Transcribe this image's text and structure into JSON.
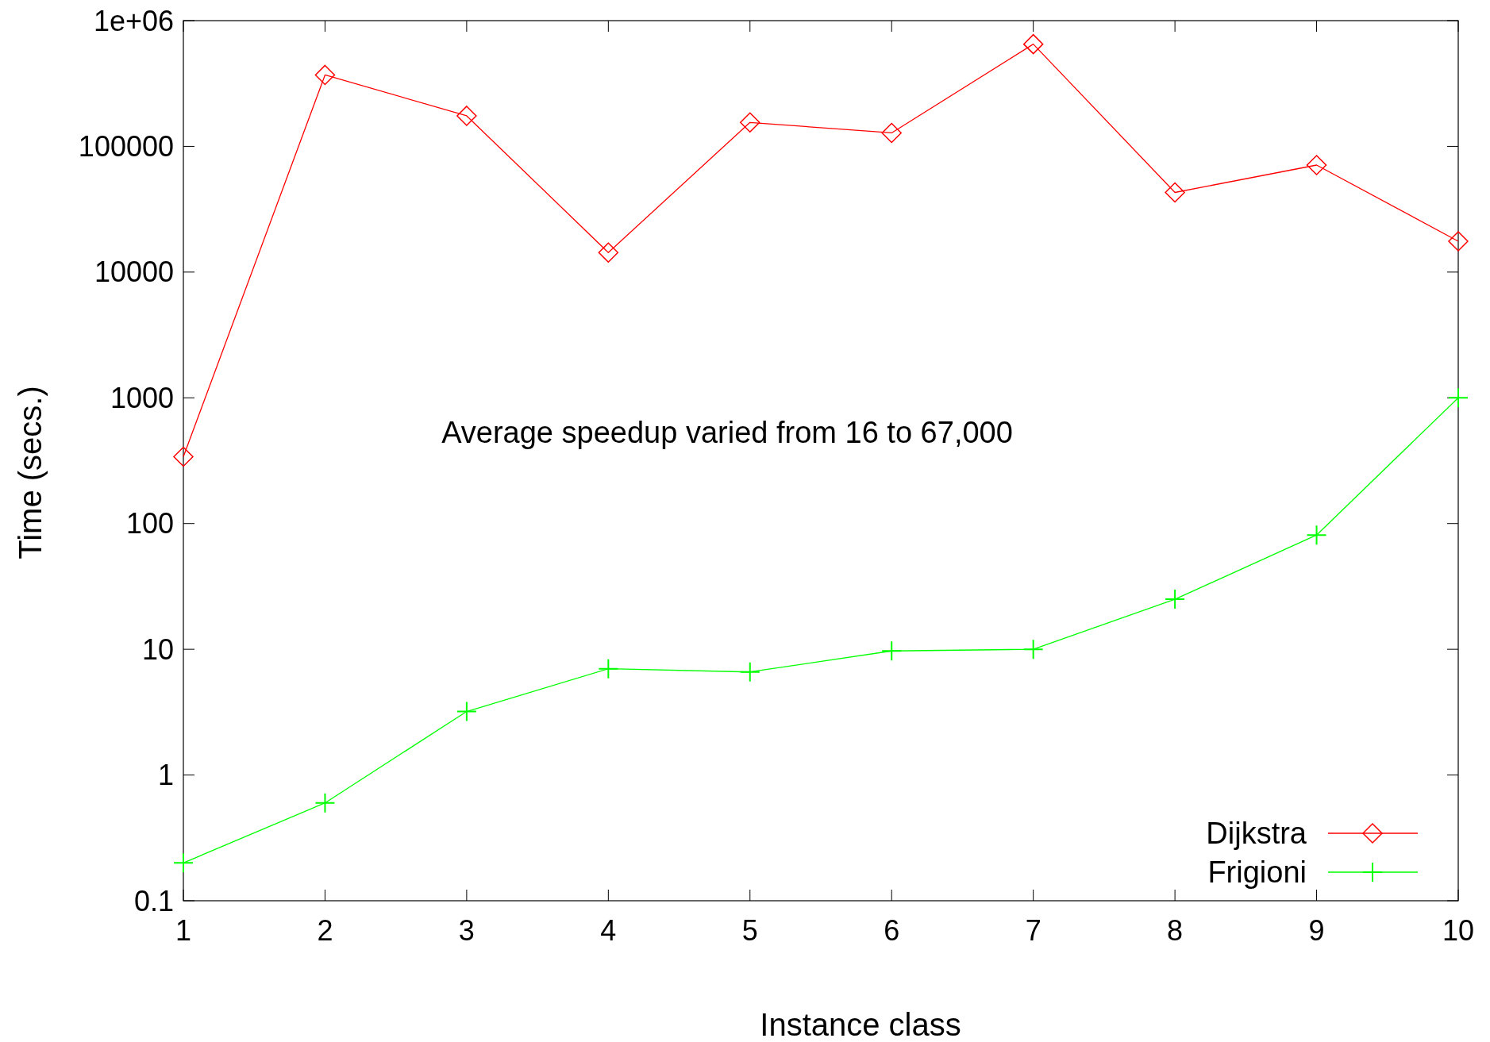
{
  "chart_data": {
    "type": "line",
    "xlabel": "Instance class",
    "ylabel": "Time (secs.)",
    "annotations": [
      "Average speedup varied from 16 to 67,000"
    ],
    "x": [
      1,
      2,
      3,
      4,
      5,
      6,
      7,
      8,
      9,
      10
    ],
    "series": [
      {
        "name": "Dijkstra",
        "color": "#ff0000",
        "marker": "diamond",
        "values": [
          340,
          370000,
          175000,
          14300,
          155000,
          128000,
          650000,
          43000,
          71000,
          17600
        ]
      },
      {
        "name": "Frigioni",
        "color": "#00ff00",
        "marker": "cross",
        "values": [
          0.2,
          0.6,
          3.2,
          7,
          6.6,
          9.7,
          10,
          25,
          81,
          1000
        ]
      }
    ],
    "xlim": [
      1,
      10
    ],
    "xticks": [
      1,
      2,
      3,
      4,
      5,
      6,
      7,
      8,
      9,
      10
    ],
    "ylim": [
      0.1,
      1000000
    ],
    "yticks": [
      {
        "value": 0.1,
        "label": "0.1"
      },
      1,
      10,
      100,
      1000,
      10000,
      100000,
      {
        "value": 1000000,
        "label": "1e+06"
      }
    ],
    "log": "y",
    "grid": false,
    "legend": "bottom right",
    "line_style": "solid"
  }
}
